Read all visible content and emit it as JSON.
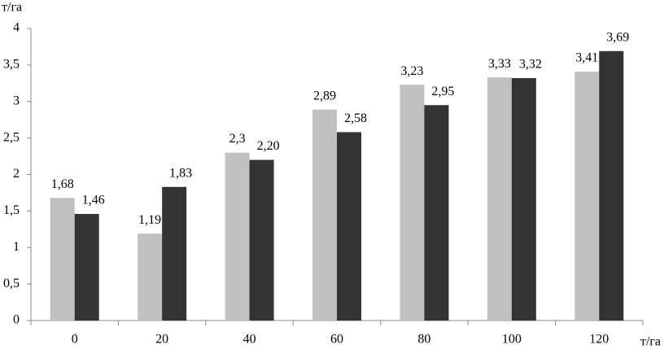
{
  "chart_data": {
    "type": "bar",
    "y_label": "т/га",
    "x_label": "т/га",
    "categories": [
      "0",
      "20",
      "40",
      "60",
      "80",
      "100",
      "120"
    ],
    "series": [
      {
        "color": "#c0c0c0",
        "values": [
          1.68,
          1.19,
          2.3,
          2.89,
          3.23,
          3.33,
          3.41
        ],
        "value_labels": [
          "1,68",
          "1,19",
          "2,3",
          "2,89",
          "3,23",
          "3,33",
          "3,41"
        ]
      },
      {
        "color": "#333333",
        "values": [
          1.46,
          1.83,
          2.2,
          2.58,
          2.95,
          3.32,
          3.69
        ],
        "value_labels": [
          "1,46",
          "1,83",
          "2,20",
          "2,58",
          "2,95",
          "3,32",
          "3,69"
        ]
      }
    ],
    "ylim": [
      0,
      4
    ],
    "yticks": [
      0,
      {
        "value": 0.5,
        "label": "0,5"
      },
      1,
      {
        "value": 1.5,
        "label": "1,5"
      },
      2,
      {
        "value": 2.5,
        "label": "2,5"
      },
      3,
      {
        "value": 3.5,
        "label": "3,5"
      },
      4
    ],
    "grid": false
  }
}
